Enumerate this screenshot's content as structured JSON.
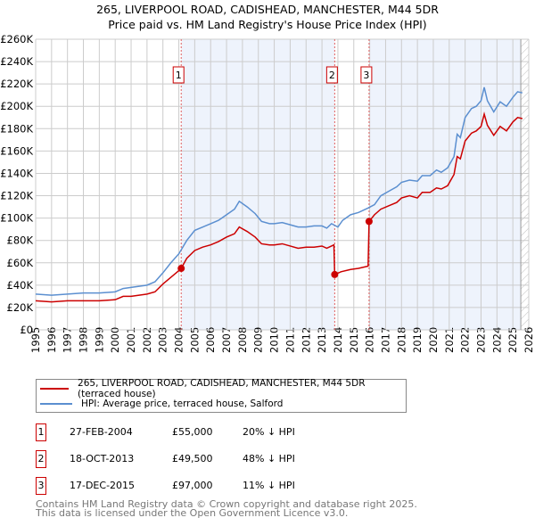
{
  "chart_data": {
    "type": "line",
    "title": "265, LIVERPOOL ROAD, CADISHEAD, MANCHESTER, M44 5DR",
    "subtitle": "Price paid vs. HM Land Registry's House Price Index (HPI)",
    "xlim": [
      1995,
      2026
    ],
    "ylim": [
      0,
      260000
    ],
    "x_ticks": [
      "1995",
      "1996",
      "1997",
      "1998",
      "1999",
      "2000",
      "2001",
      "2002",
      "2003",
      "2004",
      "2005",
      "2006",
      "2007",
      "2008",
      "2009",
      "2010",
      "2011",
      "2012",
      "2013",
      "2014",
      "2015",
      "2016",
      "2017",
      "2018",
      "2019",
      "2020",
      "2021",
      "2022",
      "2023",
      "2024",
      "2025",
      "2026"
    ],
    "y_ticks": [
      {
        "v": 0,
        "l": "£0"
      },
      {
        "v": 20000,
        "l": "£20K"
      },
      {
        "v": 40000,
        "l": "£40K"
      },
      {
        "v": 60000,
        "l": "£60K"
      },
      {
        "v": 80000,
        "l": "£80K"
      },
      {
        "v": 100000,
        "l": "£100K"
      },
      {
        "v": 120000,
        "l": "£120K"
      },
      {
        "v": 140000,
        "l": "£140K"
      },
      {
        "v": 160000,
        "l": "£160K"
      },
      {
        "v": 180000,
        "l": "£180K"
      },
      {
        "v": 200000,
        "l": "£200K"
      },
      {
        "v": 220000,
        "l": "£220K"
      },
      {
        "v": 240000,
        "l": "£240K"
      },
      {
        "v": 260000,
        "l": "£260K"
      }
    ],
    "grid": true,
    "series": [
      {
        "name": "265, LIVERPOOL ROAD, CADISHEAD, MANCHESTER, M44 5DR (terraced house)",
        "color": "#cc0000",
        "x": [
          1995,
          1996,
          1997,
          1998,
          1999,
          2000,
          2000.5,
          2001,
          2002,
          2002.5,
          2003,
          2003.5,
          2004,
          2004.15,
          2004.5,
          2005,
          2005.5,
          2006,
          2006.5,
          2007,
          2007.5,
          2007.8,
          2008.3,
          2008.8,
          2009.2,
          2009.7,
          2010,
          2010.5,
          2011,
          2011.5,
          2012,
          2012.5,
          2013,
          2013.3,
          2013.75,
          2013.8,
          2014.2,
          2014.8,
          2015.3,
          2015.9,
          2015.96,
          2016.3,
          2016.7,
          2017.2,
          2017.7,
          2018,
          2018.5,
          2019,
          2019.3,
          2019.8,
          2020.2,
          2020.5,
          2020.9,
          2021.3,
          2021.5,
          2021.7,
          2022,
          2022.4,
          2022.7,
          2023,
          2023.2,
          2023.4,
          2023.8,
          2024.2,
          2024.6,
          2025,
          2025.3,
          2025.6
        ],
        "y": [
          26000,
          25000,
          26000,
          26000,
          26000,
          27000,
          30000,
          30000,
          32000,
          34000,
          41000,
          47000,
          53000,
          55000,
          64000,
          71000,
          74000,
          76000,
          79000,
          83000,
          86000,
          92000,
          88000,
          83000,
          77000,
          76000,
          76000,
          77000,
          75000,
          73000,
          74000,
          74000,
          75000,
          73000,
          76000,
          49500,
          52000,
          54000,
          55000,
          57000,
          97000,
          103000,
          108000,
          111000,
          114000,
          118000,
          120000,
          118000,
          123000,
          123000,
          127000,
          126000,
          129000,
          139000,
          155000,
          153000,
          169000,
          176000,
          178000,
          182000,
          193000,
          183000,
          174000,
          182000,
          178000,
          186000,
          190000,
          189000
        ]
      },
      {
        "name": "HPI: Average price, terraced house, Salford",
        "color": "#5b8fd0",
        "x": [
          1995,
          1996,
          1997,
          1998,
          1999,
          2000,
          2000.5,
          2001,
          2002,
          2002.5,
          2003,
          2003.5,
          2004,
          2004.5,
          2005,
          2005.5,
          2006,
          2006.5,
          2007,
          2007.5,
          2007.8,
          2008.3,
          2008.8,
          2009.2,
          2009.7,
          2010,
          2010.5,
          2011,
          2011.5,
          2012,
          2012.5,
          2013,
          2013.3,
          2013.6,
          2014,
          2014.3,
          2014.8,
          2015.3,
          2015.9,
          2016.3,
          2016.7,
          2017.2,
          2017.7,
          2018,
          2018.5,
          2019,
          2019.3,
          2019.8,
          2020.2,
          2020.5,
          2020.9,
          2021.3,
          2021.5,
          2021.7,
          2022,
          2022.4,
          2022.7,
          2023,
          2023.2,
          2023.4,
          2023.8,
          2024.2,
          2024.6,
          2025,
          2025.3,
          2025.6
        ],
        "y": [
          32000,
          31000,
          32000,
          33000,
          33000,
          34000,
          37000,
          38000,
          40000,
          43000,
          51000,
          60000,
          68000,
          80000,
          89000,
          92000,
          95000,
          98000,
          103000,
          108000,
          115000,
          110000,
          104000,
          97000,
          95000,
          95000,
          96000,
          94000,
          92000,
          92000,
          93000,
          93000,
          91000,
          95000,
          92000,
          98000,
          103000,
          105000,
          109000,
          112000,
          120000,
          124000,
          128000,
          132000,
          134000,
          133000,
          138000,
          138000,
          143000,
          141000,
          145000,
          155000,
          175000,
          172000,
          190000,
          198000,
          200000,
          205000,
          217000,
          205000,
          195000,
          204000,
          200000,
          208000,
          213000,
          212000
        ]
      }
    ],
    "sales": [
      {
        "n": "1",
        "x": 2004.15,
        "y": 55000
      },
      {
        "n": "2",
        "x": 2013.8,
        "y": 49500
      },
      {
        "n": "3",
        "x": 2015.96,
        "y": 97000
      }
    ],
    "shaded_ranges": [
      [
        2004.15,
        2013.8
      ],
      [
        2015.96,
        2025.5
      ]
    ],
    "forecast_hatch_from": 2025.5,
    "legend_placement": "below"
  },
  "title": "265, LIVERPOOL ROAD, CADISHEAD, MANCHESTER, M44 5DR",
  "subtitle": "Price paid vs. HM Land Registry's House Price Index (HPI)",
  "legend": {
    "property": "265, LIVERPOOL ROAD, CADISHEAD, MANCHESTER, M44 5DR (terraced house)",
    "hpi": "HPI: Average price, terraced house, Salford"
  },
  "sales_table": [
    {
      "n": "1",
      "date": "27-FEB-2004",
      "price": "£55,000",
      "hpi": "20% ↓ HPI"
    },
    {
      "n": "2",
      "date": "18-OCT-2013",
      "price": "£49,500",
      "hpi": "48% ↓ HPI"
    },
    {
      "n": "3",
      "date": "17-DEC-2015",
      "price": "£97,000",
      "hpi": "11% ↓ HPI"
    }
  ],
  "footer": {
    "line1": "Contains HM Land Registry data © Crown copyright and database right 2025.",
    "line2": "This data is licensed under the Open Government Licence v3.0."
  }
}
